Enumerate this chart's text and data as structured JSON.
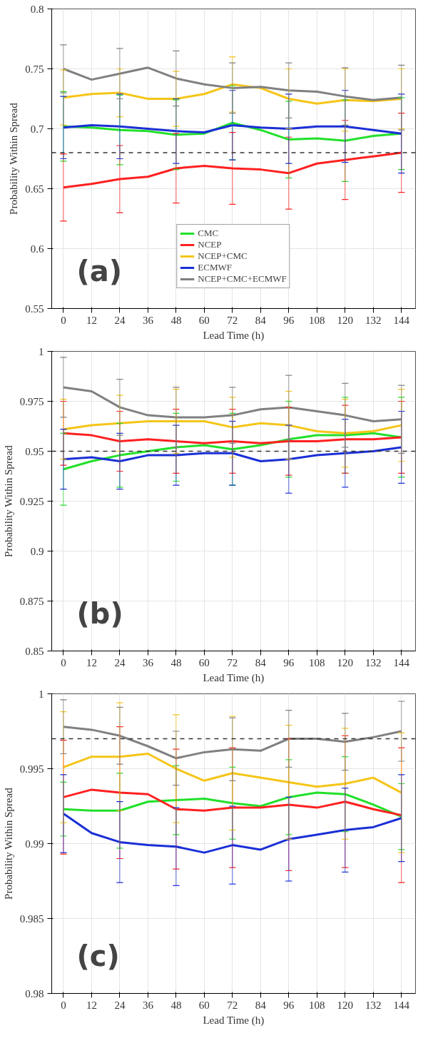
{
  "chart_data": [
    {
      "type": "line",
      "xlabel": "Lead Time (h)",
      "ylabel": "Probability Within Spread",
      "annotations": [
        "(a)"
      ],
      "x": [
        0,
        12,
        24,
        36,
        48,
        60,
        72,
        84,
        96,
        108,
        120,
        132,
        144
      ],
      "xlim": [
        -5,
        150
      ],
      "xticks": [
        0,
        12,
        24,
        36,
        48,
        60,
        72,
        84,
        96,
        108,
        120,
        132,
        144
      ],
      "ylim": [
        0.55,
        0.8
      ],
      "yticks": [
        0.55,
        0.6,
        0.65,
        0.7,
        0.75,
        0.8
      ],
      "grid": true,
      "legend": "bottom",
      "marker": "none",
      "line_style": "solid",
      "ref_lines": [
        {
          "axis": "y",
          "value": 0.68,
          "color": "#333333",
          "line_style": "dashed"
        }
      ],
      "series": [
        {
          "name": "CMC",
          "color": "#22e02a",
          "values": [
            0.702,
            0.701,
            0.699,
            0.698,
            0.695,
            0.696,
            0.705,
            0.699,
            0.691,
            0.692,
            0.69,
            0.694,
            0.696
          ],
          "errors": [
            0.029,
            null,
            0.029,
            null,
            0.029,
            null,
            0.031,
            null,
            0.032,
            null,
            0.034,
            null,
            0.03
          ]
        },
        {
          "name": "NCEP",
          "color": "#ff2020",
          "values": [
            0.651,
            0.654,
            0.658,
            0.66,
            0.667,
            0.669,
            0.667,
            0.666,
            0.663,
            0.671,
            0.674,
            0.677,
            0.68
          ],
          "errors": [
            0.028,
            null,
            0.028,
            null,
            0.029,
            null,
            0.03,
            null,
            0.03,
            null,
            0.033,
            null,
            0.033
          ]
        },
        {
          "name": "NCEP+CMC",
          "color": "#f5c518",
          "values": [
            0.726,
            0.729,
            0.73,
            0.725,
            0.725,
            0.729,
            0.737,
            0.734,
            0.725,
            0.721,
            0.724,
            0.723,
            0.725
          ],
          "errors": [
            0.023,
            null,
            0.02,
            null,
            0.023,
            null,
            0.023,
            null,
            0.025,
            null,
            0.026,
            null,
            0.025
          ]
        },
        {
          "name": "ECMWF",
          "color": "#1a2fd6",
          "values": [
            0.701,
            0.703,
            0.702,
            0.7,
            0.698,
            0.697,
            0.703,
            0.701,
            0.7,
            0.702,
            0.702,
            0.699,
            0.696
          ],
          "errors": [
            0.026,
            null,
            0.027,
            null,
            0.027,
            null,
            0.029,
            null,
            0.029,
            null,
            0.03,
            null,
            0.033
          ]
        },
        {
          "name": "NCEP+CMC+ECMWF",
          "color": "#808080",
          "values": [
            0.75,
            0.741,
            0.746,
            0.751,
            0.742,
            0.737,
            0.734,
            0.735,
            0.732,
            0.731,
            0.727,
            0.724,
            0.726
          ],
          "errors": [
            0.02,
            null,
            0.021,
            null,
            0.023,
            null,
            0.021,
            null,
            0.023,
            null,
            0.024,
            null,
            0.027
          ]
        }
      ]
    },
    {
      "type": "line",
      "xlabel": "Lead Time (h)",
      "ylabel": "Probability Within Spread",
      "annotations": [
        "(b)"
      ],
      "x": [
        0,
        12,
        24,
        36,
        48,
        60,
        72,
        84,
        96,
        108,
        120,
        132,
        144
      ],
      "xlim": [
        -5,
        150
      ],
      "xticks": [
        0,
        12,
        24,
        36,
        48,
        60,
        72,
        84,
        96,
        108,
        120,
        132,
        144
      ],
      "ylim": [
        0.85,
        1
      ],
      "yticks": [
        0.85,
        0.875,
        0.9,
        0.925,
        0.95,
        0.975,
        1
      ],
      "grid": true,
      "marker": "none",
      "line_style": "solid",
      "ref_lines": [
        {
          "axis": "y",
          "value": 0.95,
          "color": "#333333",
          "line_style": "dashed"
        }
      ],
      "series": [
        {
          "color": "#22e02a",
          "values": [
            0.941,
            0.945,
            0.948,
            0.95,
            0.952,
            0.953,
            0.951,
            0.953,
            0.956,
            0.958,
            0.958,
            0.959,
            0.957
          ],
          "errors": [
            0.018,
            null,
            0.016,
            null,
            0.017,
            null,
            0.018,
            null,
            0.019,
            null,
            0.019,
            null,
            0.02
          ]
        },
        {
          "color": "#ff2020",
          "values": [
            0.959,
            0.958,
            0.955,
            0.956,
            0.955,
            0.954,
            0.955,
            0.954,
            0.955,
            0.955,
            0.956,
            0.956,
            0.957
          ],
          "errors": [
            0.016,
            null,
            0.015,
            null,
            0.016,
            null,
            0.016,
            null,
            0.017,
            null,
            0.017,
            null,
            0.018
          ]
        },
        {
          "color": "#f5c518",
          "values": [
            0.961,
            0.963,
            0.964,
            0.965,
            0.965,
            0.965,
            0.962,
            0.964,
            0.963,
            0.96,
            0.959,
            0.96,
            0.963
          ],
          "errors": [
            0.015,
            null,
            0.014,
            null,
            0.016,
            null,
            0.015,
            null,
            0.017,
            null,
            0.017,
            null,
            0.018
          ]
        },
        {
          "color": "#1a2fd6",
          "values": [
            0.946,
            0.947,
            0.945,
            0.948,
            0.948,
            0.949,
            0.949,
            0.945,
            0.946,
            0.948,
            0.949,
            0.95,
            0.952
          ],
          "errors": [
            0.015,
            null,
            0.014,
            null,
            0.015,
            null,
            0.016,
            null,
            0.017,
            null,
            0.017,
            null,
            0.018
          ]
        },
        {
          "color": "#808080",
          "values": [
            0.982,
            0.98,
            0.972,
            0.968,
            0.967,
            0.967,
            0.968,
            0.971,
            0.972,
            0.97,
            0.968,
            0.965,
            0.966
          ],
          "errors": [
            0.015,
            null,
            0.014,
            null,
            0.015,
            null,
            0.014,
            null,
            0.016,
            null,
            0.016,
            null,
            0.017
          ]
        }
      ]
    },
    {
      "type": "line",
      "xlabel": "Lead Time (h)",
      "ylabel": "Probability Within Spread",
      "annotations": [
        "(c)"
      ],
      "x": [
        0,
        12,
        24,
        36,
        48,
        60,
        72,
        84,
        96,
        108,
        120,
        132,
        144
      ],
      "xlim": [
        -5,
        150
      ],
      "xticks": [
        0,
        12,
        24,
        36,
        48,
        60,
        72,
        84,
        96,
        108,
        120,
        132,
        144
      ],
      "ylim": [
        0.98,
        1
      ],
      "yticks": [
        0.98,
        0.985,
        0.99,
        0.995,
        1
      ],
      "grid": true,
      "marker": "none",
      "line_style": "solid",
      "ref_lines": [
        {
          "axis": "y",
          "value": 0.997,
          "color": "#333333",
          "line_style": "dashed"
        }
      ],
      "series": [
        {
          "color": "#22e02a",
          "values": [
            0.9923,
            0.9922,
            0.9922,
            0.9928,
            0.9929,
            0.993,
            0.9927,
            0.9925,
            0.9931,
            0.9934,
            0.9933,
            0.9926,
            0.9918
          ],
          "errors": [
            0.0018,
            null,
            0.0025,
            null,
            0.0023,
            null,
            0.0024,
            null,
            0.0025,
            null,
            0.0025,
            null,
            0.0022
          ]
        },
        {
          "color": "#ff2020",
          "values": [
            0.9931,
            0.9936,
            0.9934,
            0.9933,
            0.9923,
            0.9922,
            0.9924,
            0.9924,
            0.9926,
            0.9924,
            0.9928,
            0.9923,
            0.9919
          ],
          "errors": [
            0.0038,
            null,
            0.0044,
            null,
            0.004,
            null,
            0.004,
            null,
            0.0044,
            null,
            0.0044,
            null,
            0.0045
          ]
        },
        {
          "color": "#f5c518",
          "values": [
            0.9951,
            0.9958,
            0.9958,
            0.996,
            0.995,
            0.9942,
            0.9947,
            0.9944,
            0.9941,
            0.9938,
            0.994,
            0.9944,
            0.9934
          ],
          "errors": [
            0.0037,
            null,
            0.0036,
            null,
            0.0036,
            null,
            0.0038,
            null,
            0.0038,
            null,
            0.0037,
            null,
            0.004
          ]
        },
        {
          "color": "#1a2fd6",
          "values": [
            0.992,
            0.9907,
            0.9901,
            0.9899,
            0.9898,
            0.9894,
            0.9899,
            0.9896,
            0.9903,
            0.9906,
            0.9909,
            0.9911,
            0.9917
          ],
          "errors": [
            0.0026,
            null,
            0.0027,
            null,
            0.0026,
            null,
            0.0026,
            null,
            0.0028,
            null,
            0.0028,
            null,
            0.0029
          ]
        },
        {
          "color": "#808080",
          "values": [
            0.9978,
            0.9976,
            0.9972,
            0.9965,
            0.9957,
            0.9961,
            0.9963,
            0.9962,
            0.997,
            0.997,
            0.9968,
            0.9971,
            0.9975
          ],
          "errors": [
            0.0018,
            null,
            0.0019,
            null,
            0.0018,
            null,
            0.0021,
            null,
            0.0019,
            null,
            0.0019,
            null,
            0.002
          ]
        }
      ]
    }
  ]
}
